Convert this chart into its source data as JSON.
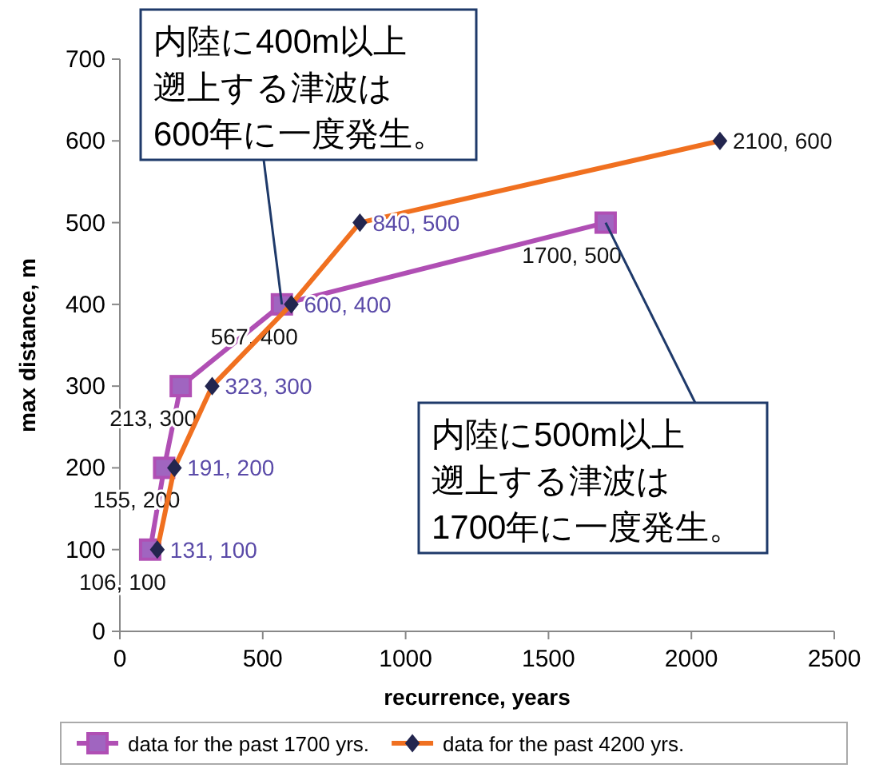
{
  "chart_data": {
    "type": "line",
    "xlabel": "recurrence, years",
    "ylabel": "max distance, m",
    "xlim": [
      0,
      2500
    ],
    "xticks": [
      0,
      500,
      1000,
      1500,
      2000,
      2500
    ],
    "ylim": [
      0,
      700
    ],
    "yticks": [
      0,
      100,
      200,
      300,
      400,
      500,
      600,
      700
    ],
    "grid": false,
    "legend": "bottom",
    "line_style": "solid",
    "series": [
      {
        "name": "data for the  past 1700 yrs.",
        "color": "#b04fb4",
        "marker": "square",
        "x": [
          106,
          155,
          213,
          567,
          1700
        ],
        "values": [
          100,
          200,
          300,
          400,
          500
        ],
        "value_labels": [
          "106, 100",
          "155, 200",
          "213, 300",
          "567, 400",
          "1700, 500"
        ]
      },
      {
        "name": "data for the  past 4200 yrs.",
        "color": "#f07020",
        "marker": "diamond",
        "x": [
          131,
          191,
          323,
          600,
          840,
          2100
        ],
        "values": [
          100,
          200,
          300,
          400,
          500,
          600
        ],
        "value_labels": [
          "131, 100",
          "191, 200",
          "323, 300",
          "600, 400",
          "840, 500",
          "2100, 600"
        ]
      }
    ],
    "annotations": [
      {
        "text": "内陸に400m以上遡上する津波は600年に一度発生。",
        "x": 567,
        "y": 400
      },
      {
        "text": "内陸に500m以上遡上する津波は1700年に一度発生。",
        "x": 1700,
        "y": 500
      }
    ]
  }
}
